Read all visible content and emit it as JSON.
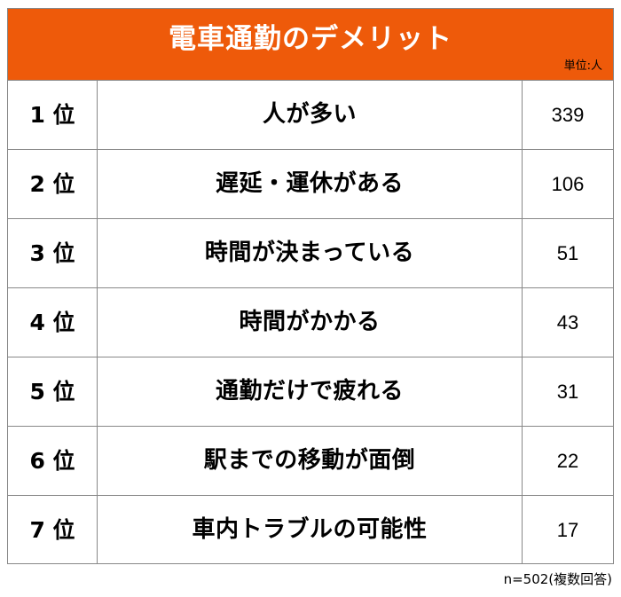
{
  "chart_data": {
    "type": "table",
    "title": "電車通勤のデメリット",
    "unit_label": "単位:人",
    "columns": [
      "",
      "",
      ""
    ],
    "rows": [
      {
        "rank": "1 位",
        "item": "人が多い",
        "value": 339
      },
      {
        "rank": "2 位",
        "item": "遅延・運休がある",
        "value": 106
      },
      {
        "rank": "3 位",
        "item": "時間が決まっている",
        "value": 51
      },
      {
        "rank": "4 位",
        "item": "時間がかかる",
        "value": 43
      },
      {
        "rank": "5 位",
        "item": "通勤だけで疲れる",
        "value": 31
      },
      {
        "rank": "6 位",
        "item": "駅までの移動が面倒",
        "value": 22
      },
      {
        "rank": "7 位",
        "item": "車内トラブルの可能性",
        "value": 17
      }
    ],
    "note": "n=502(複数回答)"
  },
  "colors": {
    "header_background": "#ee5a0a",
    "header_text": "#ffffff",
    "border": "#888888"
  }
}
